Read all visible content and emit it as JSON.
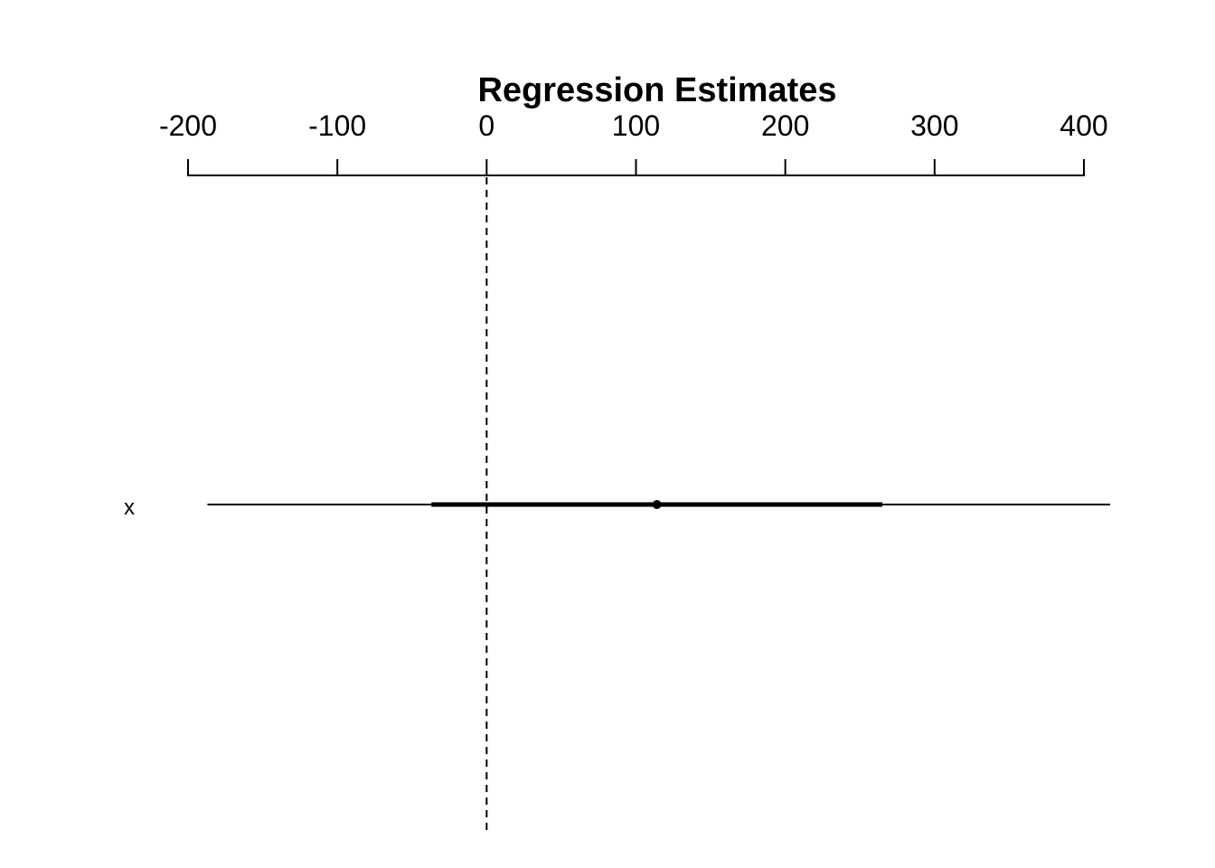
{
  "chart_data": {
    "type": "coefficient-plot",
    "title": "Regression Estimates",
    "xlabel": "",
    "ylabel": "",
    "axis_position": "top",
    "xlim": [
      -200,
      400
    ],
    "x_ticks": [
      -200,
      -100,
      0,
      100,
      200,
      300,
      400
    ],
    "x_tick_labels": [
      "-200",
      "-100",
      "0",
      "100",
      "200",
      "300",
      "400"
    ],
    "reference_line": {
      "x": 0,
      "style": "dashed"
    },
    "grid": false,
    "legend": "none",
    "colors": {
      "ink": "#000000",
      "background": "#ffffff"
    },
    "series": [
      {
        "label": "x",
        "estimate": 114,
        "inner_interval": [
          -37,
          265
        ],
        "outer_interval": [
          -187,
          418
        ]
      }
    ]
  }
}
